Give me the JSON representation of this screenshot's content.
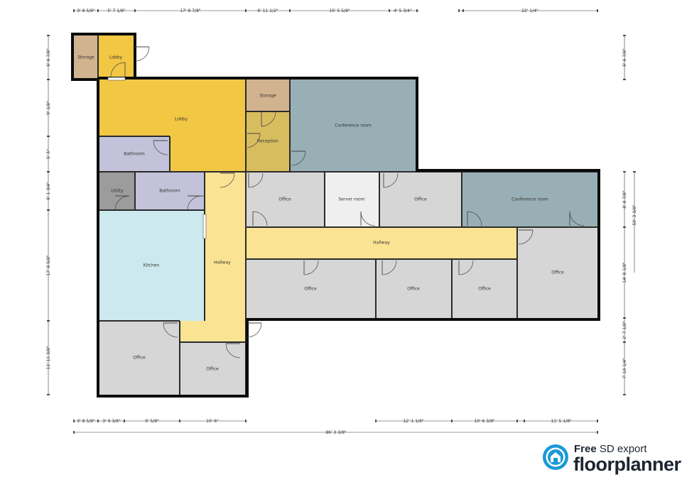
{
  "plan": {
    "rooms": {
      "storage_a": "Storage",
      "lobby_small": "Lobby",
      "lobby_main": "Lobby",
      "storage_b": "Storage",
      "reception": "Reception",
      "conference_a": "Conference room",
      "bathroom_a": "Bathroom",
      "utility": "Utility",
      "bathroom_b": "Bathroom",
      "office_1": "Office",
      "server_room": "Server room",
      "office_2": "Office",
      "conference_b": "Conference room",
      "kitchen": "Kitchen",
      "hallway_vertical": "Hallway",
      "hallway_horizontal": "Hallway",
      "office_3": "Office",
      "office_4": "Office",
      "office_5": "Office",
      "office_6": "Office",
      "office_7": "Office",
      "office_8": "Office"
    },
    "colors": {
      "lobby": "#f2c744",
      "storage": "#d2b38f",
      "reception": "#d8bd5f",
      "conference": "#98b0b5",
      "bathroom": "#c3c2da",
      "utility": "#9c9c9c",
      "office": "#d6d6d6",
      "server": "#efefef",
      "kitchen": "#cbe9ee",
      "hallway": "#fbe394"
    }
  },
  "dimensions": {
    "top": [
      "3' 8 5/8\"",
      "5' 7 1/8\"",
      "17' 8 7/8\"",
      "6' 11 1/2\"",
      "15' 5 5/8\"",
      "4' 5 3/4\"",
      "22' 1/4\""
    ],
    "bottom_segments": [
      "3' 8 5/8\"",
      "3' 9 3/8\"",
      "9' 5/8\"",
      "10' 6\"",
      "12' 1 1/8\"",
      "10' 6 3/8\"",
      "11' 5 1/8\""
    ],
    "bottom_total": "86' 3 3/8\"",
    "left": [
      "6' 6 7/8\"",
      "9' 1/8\"",
      "5' 5\"",
      "6' 1 3/4\"",
      "17' 8 5/8\"",
      "11' 11 3/8\""
    ],
    "right_inner": [
      "6' 6 7/8\"",
      "8' 8 7/8\"",
      "14' 8 1/8\"",
      "2' 7 1/8\"",
      "7' 10 1/4\""
    ],
    "right_total": "59' 3 3/8\""
  },
  "brand": {
    "tag_bold": "Free",
    "tag_rest": "SD export",
    "name": "floorplanner"
  }
}
